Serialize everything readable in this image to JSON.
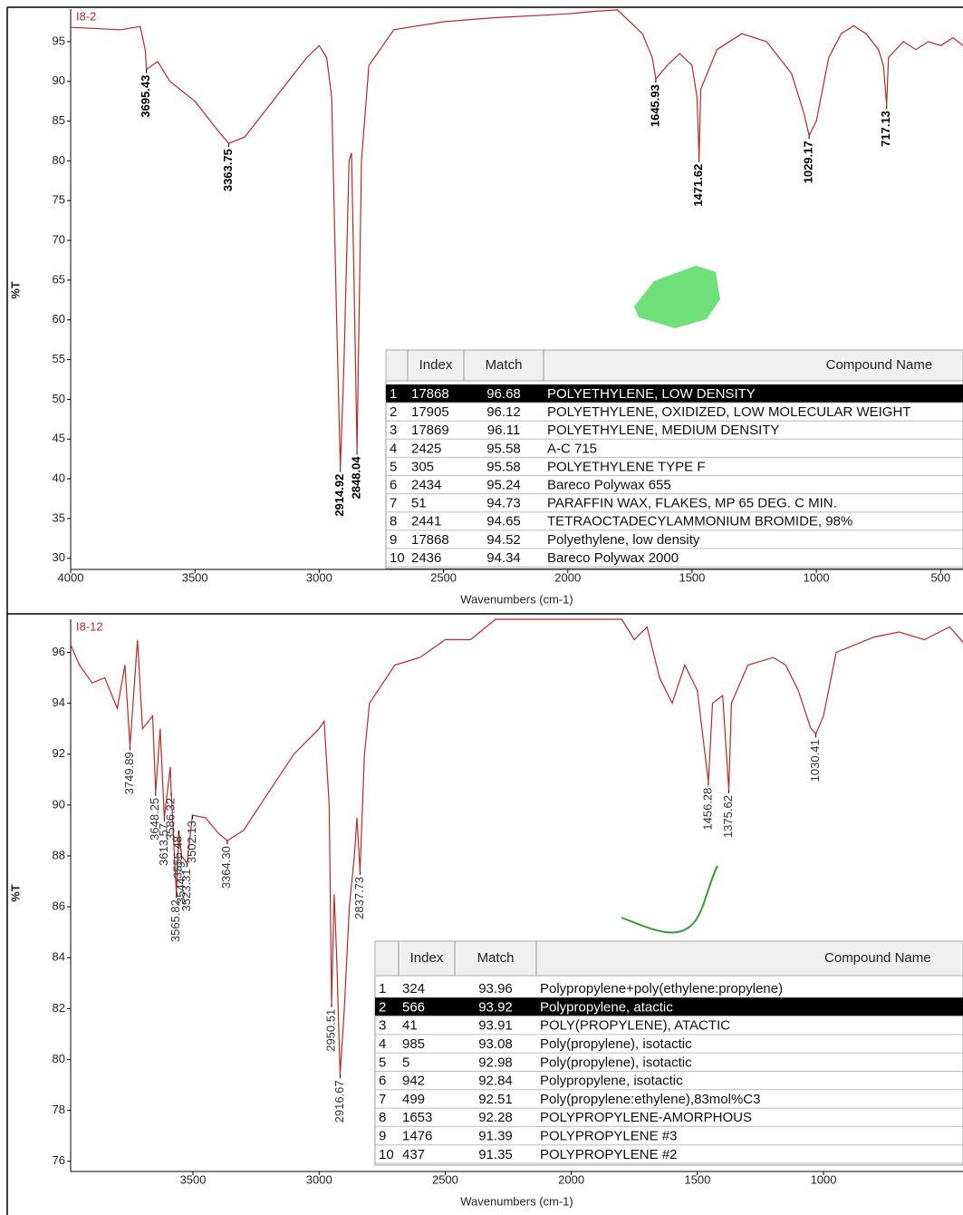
{
  "chart_data": [
    {
      "type": "line",
      "title": "I8-2",
      "x_label": "Wavenumbers (cm-1)",
      "y_label": "%T",
      "color": "#b52a2a",
      "xlim": [
        4000,
        410
      ],
      "ylim": [
        28.6,
        99.1
      ],
      "xticks": [
        4000,
        3500,
        3000,
        2500,
        2000,
        1500,
        1000,
        500
      ],
      "yticks": [
        30,
        35,
        40,
        45,
        50,
        55,
        60,
        65,
        70,
        75,
        80,
        85,
        90,
        95
      ],
      "x": [
        4000,
        3800,
        3720,
        3700,
        3695,
        3650,
        3600,
        3500,
        3400,
        3363.75,
        3300,
        3200,
        3100,
        3050,
        3000,
        2970,
        2950,
        2930,
        2914.92,
        2900,
        2880,
        2870,
        2860,
        2848.04,
        2830,
        2800,
        2700,
        2500,
        2300,
        2000,
        1900,
        1800,
        1700,
        1660,
        1645.93,
        1600,
        1550,
        1500,
        1480,
        1471.62,
        1465,
        1400,
        1300,
        1200,
        1100,
        1050,
        1029.17,
        1000,
        950,
        900,
        850,
        800,
        750,
        730,
        717.13,
        710,
        650,
        600,
        550,
        500,
        450,
        410
      ],
      "values": [
        96.8,
        96.5,
        96.9,
        94,
        91.5,
        92.5,
        90,
        87.5,
        83.5,
        82.2,
        83,
        87,
        91,
        93,
        94.5,
        93,
        88,
        60,
        41.3,
        55,
        80,
        81,
        65,
        43.5,
        80,
        92,
        96.5,
        97.5,
        98,
        98.5,
        98.8,
        99,
        96,
        93,
        90.3,
        92,
        93.5,
        92,
        88,
        80.3,
        89,
        94,
        96,
        95,
        91,
        86,
        83.2,
        85,
        93,
        96,
        97,
        96,
        94,
        92,
        87,
        93,
        95,
        94,
        95,
        94.5,
        95.5,
        94.5
      ],
      "annotations": [
        {
          "x": 3695.43,
          "y": 91.5,
          "label": "3695.43"
        },
        {
          "x": 3363.75,
          "y": 82.2,
          "label": "3363.75"
        },
        {
          "x": 2914.92,
          "y": 41.3,
          "label": "2914.92"
        },
        {
          "x": 2848.04,
          "y": 43.5,
          "label": "2848.04"
        },
        {
          "x": 1645.93,
          "y": 90.3,
          "label": "1645.93"
        },
        {
          "x": 1471.62,
          "y": 80.3,
          "label": "1471.62"
        },
        {
          "x": 1029.17,
          "y": 83.2,
          "label": "1029.17"
        },
        {
          "x": 717.13,
          "y": 87,
          "label": "717.13"
        }
      ],
      "table": {
        "columns": [
          "Index",
          "Match",
          "Compound Name"
        ],
        "selected_row": 0,
        "rows": [
          [
            "1",
            "17868",
            "96.68",
            "POLYETHYLENE, LOW DENSITY"
          ],
          [
            "2",
            "17905",
            "96.12",
            "POLYETHYLENE, OXIDIZED, LOW MOLECULAR WEIGHT"
          ],
          [
            "3",
            "17869",
            "96.11",
            "POLYETHYLENE, MEDIUM DENSITY"
          ],
          [
            "4",
            "2425",
            "95.58",
            "A-C 715"
          ],
          [
            "5",
            "305",
            "95.58",
            "POLYETHYLENE TYPE F"
          ],
          [
            "6",
            "2434",
            "95.24",
            "Bareco Polywax 655"
          ],
          [
            "7",
            "51",
            "94.73",
            "PARAFFIN WAX, FLAKES, MP 65 DEG. C MIN."
          ],
          [
            "8",
            "2441",
            "94.65",
            "TETRAOCTADECYLAMMONIUM BROMIDE, 98%"
          ],
          [
            "9",
            "17868",
            "94.52",
            "Polyethylene, low density"
          ],
          [
            "10",
            "2436",
            "94.34",
            "Bareco Polywax 2000"
          ]
        ]
      }
    },
    {
      "type": "line",
      "title": "I8-12",
      "x_label": "Wavenumbers (cm-1)",
      "y_label": "%T",
      "color": "#b52a2a",
      "xlim": [
        3985,
        447
      ],
      "ylim": [
        75.6,
        97.3
      ],
      "xticks": [
        3500,
        3000,
        2500,
        2000,
        1500,
        1000
      ],
      "yticks": [
        76,
        78,
        80,
        82,
        84,
        86,
        88,
        90,
        92,
        94,
        96
      ],
      "x": [
        3985,
        3950,
        3900,
        3850,
        3800,
        3770,
        3749.89,
        3720,
        3700,
        3660,
        3648.25,
        3630,
        3613.57,
        3590,
        3586.32,
        3565.82,
        3556.48,
        3544.79,
        3523.31,
        3502.13,
        3450,
        3400,
        3364.3,
        3300,
        3200,
        3100,
        3000,
        2980,
        2960,
        2950.51,
        2940,
        2930,
        2916.67,
        2900,
        2880,
        2860,
        2850,
        2837.73,
        2820,
        2800,
        2700,
        2600,
        2500,
        2400,
        2300,
        2000,
        1800,
        1750,
        1700,
        1650,
        1600,
        1550,
        1500,
        1470,
        1456.28,
        1440,
        1400,
        1385,
        1375.62,
        1365,
        1300,
        1200,
        1150,
        1100,
        1050,
        1030.41,
        1000,
        950,
        900,
        800,
        700,
        600,
        500,
        447
      ],
      "values": [
        96.3,
        95.5,
        94.8,
        95,
        93.8,
        95.5,
        92.3,
        96.5,
        93,
        93.5,
        90.5,
        93,
        89.5,
        91.5,
        90.5,
        86.5,
        89,
        88,
        87.7,
        89.6,
        89.5,
        88.9,
        88.6,
        89,
        90.5,
        92,
        93,
        93.3,
        90,
        82.2,
        86.5,
        84,
        79.4,
        82,
        86,
        88,
        89.5,
        87.4,
        92,
        94,
        95.5,
        95.8,
        96.5,
        96.5,
        97.3,
        97.3,
        97.3,
        96.5,
        97,
        95,
        94,
        95.5,
        94.5,
        92,
        90.9,
        94,
        94.3,
        92,
        90.6,
        94,
        95.5,
        95.8,
        95.5,
        94.5,
        93,
        92.8,
        93.5,
        96,
        96.2,
        96.6,
        96.8,
        96.5,
        97,
        96.4
      ],
      "annotations": [
        {
          "x": 3749.89,
          "y": 92.3,
          "label": "3749.89"
        },
        {
          "x": 3648.25,
          "y": 90.5,
          "label": "3648.25"
        },
        {
          "x": 3613.57,
          "y": 89.5,
          "label": "3613.57"
        },
        {
          "x": 3586.32,
          "y": 90.5,
          "label": "3586.32"
        },
        {
          "x": 3565.82,
          "y": 86.5,
          "label": "3565.82"
        },
        {
          "x": 3556.48,
          "y": 89,
          "label": "3556.48"
        },
        {
          "x": 3544.79,
          "y": 88,
          "label": "3544.79"
        },
        {
          "x": 3523.31,
          "y": 87.7,
          "label": "3523.31"
        },
        {
          "x": 3502.13,
          "y": 89.6,
          "label": "3502.13"
        },
        {
          "x": 3364.3,
          "y": 88.6,
          "label": "3364.30"
        },
        {
          "x": 2950.51,
          "y": 82.2,
          "label": "2950.51"
        },
        {
          "x": 2916.67,
          "y": 79.4,
          "label": "2916.67"
        },
        {
          "x": 2837.73,
          "y": 87.4,
          "label": "2837.73"
        },
        {
          "x": 1456.28,
          "y": 90.9,
          "label": "1456.28"
        },
        {
          "x": 1375.62,
          "y": 90.6,
          "label": "1375.62"
        },
        {
          "x": 1030.41,
          "y": 92.8,
          "label": "1030.41"
        }
      ],
      "table": {
        "columns": [
          "Index",
          "Match",
          "Compound Name"
        ],
        "selected_row": 1,
        "rows": [
          [
            "1",
            "324",
            "93.96",
            "Polypropylene+poly(ethylene:propylene)"
          ],
          [
            "2",
            "566",
            "93.92",
            "Polypropylene, atactic"
          ],
          [
            "3",
            "41",
            "93.91",
            "POLY(PROPYLENE), ATACTIC"
          ],
          [
            "4",
            "985",
            "93.08",
            "Poly(propylene), isotactic"
          ],
          [
            "5",
            "5",
            "92.98",
            "Poly(propylene), isotactic"
          ],
          [
            "6",
            "942",
            "92.84",
            "Polypropylene, isotactic"
          ],
          [
            "7",
            "499",
            "92.51",
            "Poly(propylene:ethylene),83mol%C3"
          ],
          [
            "8",
            "1653",
            "92.28",
            "POLYPROPYLENE-AMORPHOUS"
          ],
          [
            "9",
            "1476",
            "91.39",
            "POLYPROPYLENE #3"
          ],
          [
            "10",
            "437",
            "91.35",
            "POLYPROPYLENE #2"
          ]
        ]
      }
    }
  ]
}
